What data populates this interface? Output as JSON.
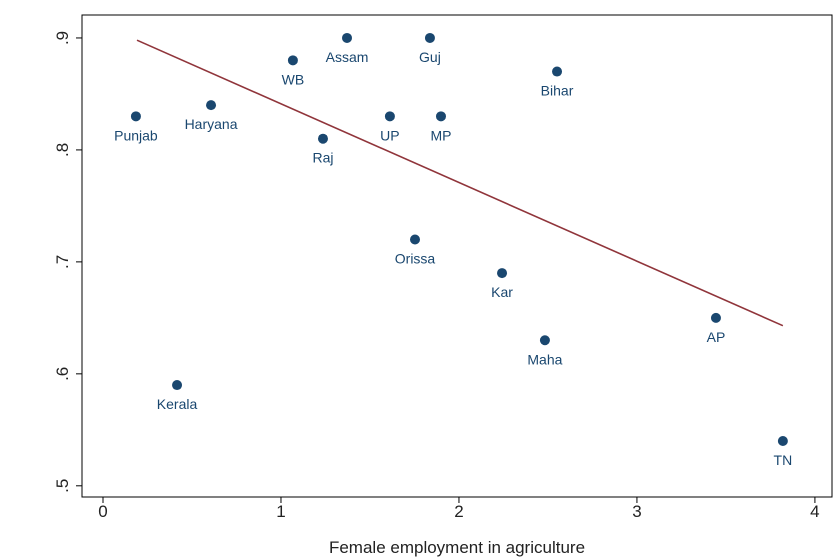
{
  "chart_data": {
    "type": "scatter",
    "x_label": "Female employment in agriculture",
    "xlim": [
      -0.118,
      4.096
    ],
    "ylim": [
      0.49,
      0.9205
    ],
    "xticks": [
      0,
      1,
      2,
      3,
      4
    ],
    "yticks": [
      {
        "value": 0.5,
        "label": ".5"
      },
      {
        "value": 0.6,
        "label": ".6"
      },
      {
        "value": 0.7,
        "label": ".7"
      },
      {
        "value": 0.8,
        "label": ".8"
      },
      {
        "value": 0.9,
        "label": ".9"
      }
    ],
    "points": {
      "color": "#1a476f",
      "labels": [
        "Punjab",
        "Haryana",
        "WB",
        "Assam",
        "Guj",
        "Bihar",
        "Raj",
        "UP",
        "MP",
        "Orissa",
        "Kar",
        "Maha",
        "AP",
        "Kerala",
        "TN"
      ],
      "x": [
        0.185,
        0.607,
        1.067,
        1.371,
        1.837,
        2.551,
        1.236,
        1.612,
        1.899,
        1.753,
        2.242,
        2.483,
        3.444,
        0.416,
        3.82
      ],
      "y": [
        0.83,
        0.84,
        0.88,
        0.9,
        0.9,
        0.87,
        0.81,
        0.83,
        0.83,
        0.72,
        0.69,
        0.63,
        0.65,
        0.59,
        0.54
      ]
    },
    "fit_line": {
      "color": "#90353b",
      "x": [
        0.191,
        3.82
      ],
      "y": [
        0.898,
        0.643
      ]
    }
  }
}
